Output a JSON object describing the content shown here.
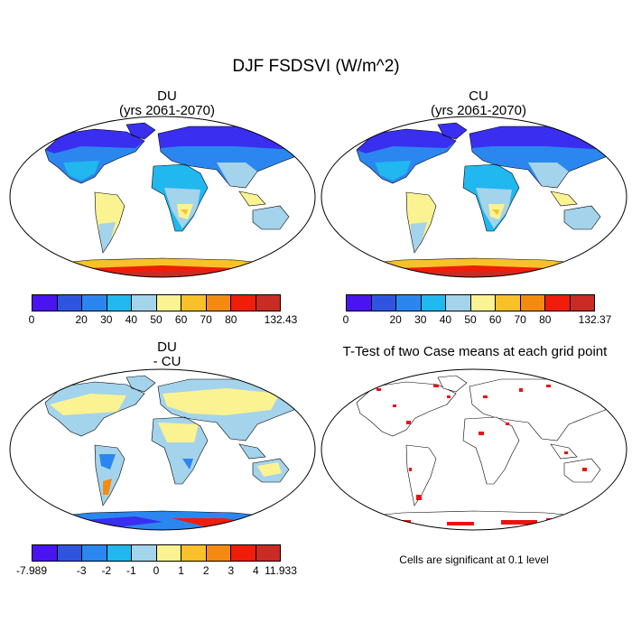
{
  "title": "DJF FSDSVI (W/m^2)",
  "panels": [
    {
      "id": "du",
      "title_line1": "DU",
      "title_line2": "(yrs 2061-2070)",
      "colorbar": {
        "colors": [
          "#4a14f0",
          "#2f55e0",
          "#2b87ef",
          "#20b8ef",
          "#a4d3ec",
          "#fbf391",
          "#f8c12a",
          "#f48b10",
          "#f01d0a",
          "#c82c24"
        ],
        "labels": [
          "0",
          "20",
          "30",
          "40",
          "50",
          "60",
          "70",
          "80",
          "132.43"
        ]
      }
    },
    {
      "id": "cu",
      "title_line1": "CU",
      "title_line2": "(yrs 2061-2070)",
      "colorbar": {
        "colors": [
          "#4a14f0",
          "#2f55e0",
          "#2b87ef",
          "#20b8ef",
          "#a4d3ec",
          "#fbf391",
          "#f8c12a",
          "#f48b10",
          "#f01d0a",
          "#c82c24"
        ],
        "labels": [
          "0",
          "20",
          "30",
          "40",
          "50",
          "60",
          "70",
          "80",
          "132.37"
        ]
      }
    },
    {
      "id": "diff",
      "title_line1": "DU",
      "title_line2": "- CU",
      "colorbar": {
        "colors": [
          "#4a14f0",
          "#2f55e0",
          "#2b87ef",
          "#20b8ef",
          "#a4d3ec",
          "#fbf391",
          "#f8c12a",
          "#f48b10",
          "#f01d0a",
          "#c82c24"
        ],
        "labels": [
          "-7.989",
          "-3",
          "-2",
          "-1",
          "0",
          "1",
          "2",
          "3",
          "4",
          "11.933"
        ]
      }
    },
    {
      "id": "ttest",
      "title_line1": "T-Test of two Case means at each grid point",
      "footnote": "Cells are significant at 0.1 level"
    }
  ]
}
